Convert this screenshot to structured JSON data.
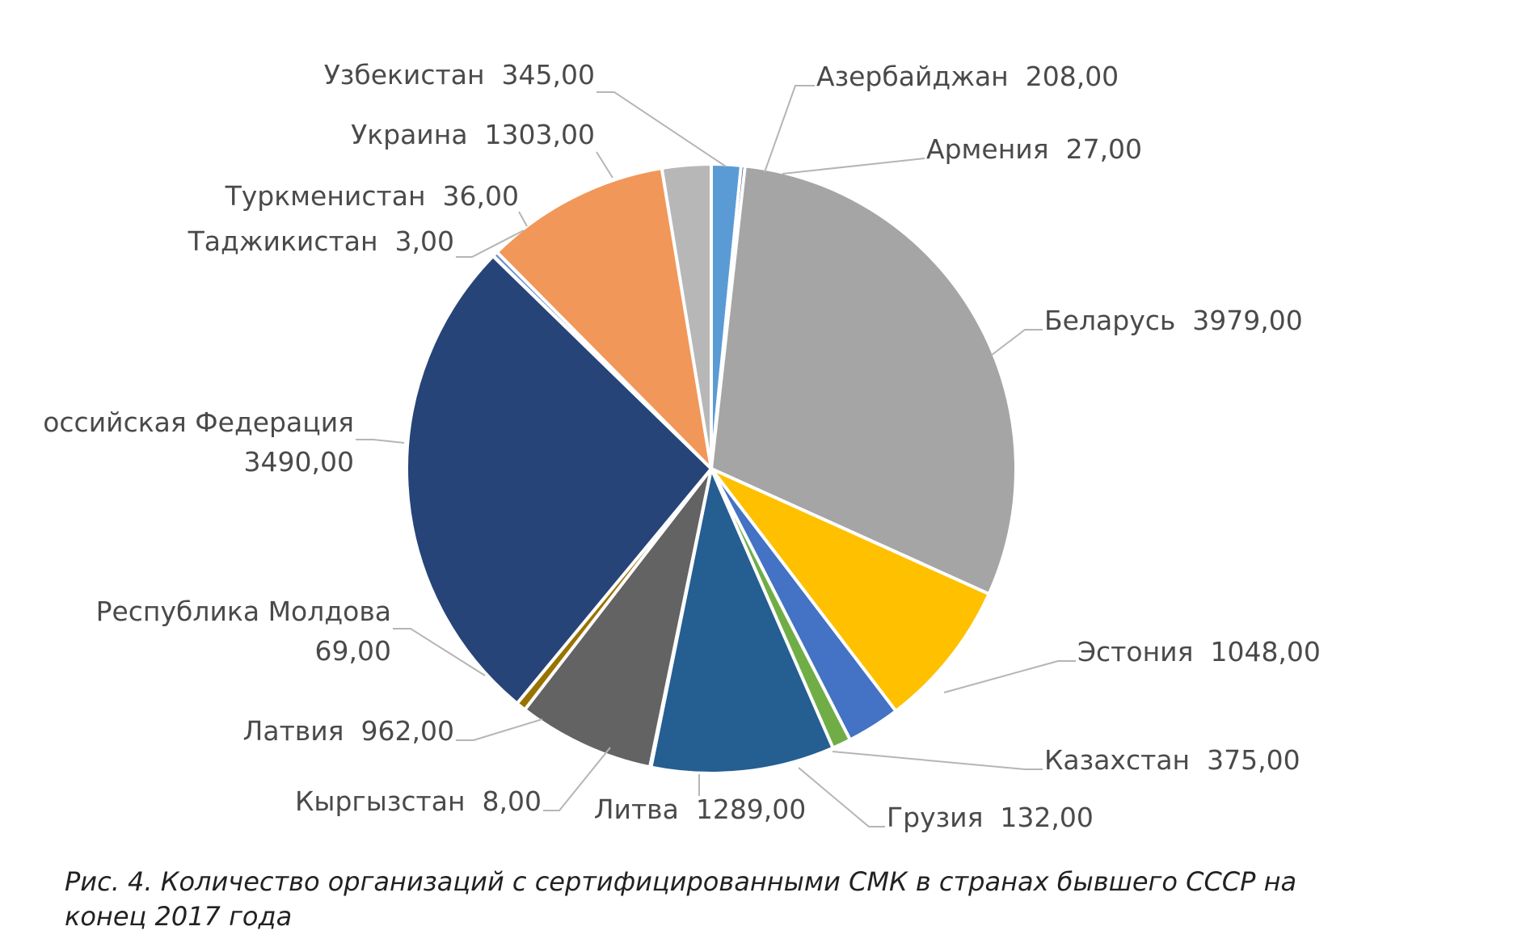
{
  "chart_data": {
    "type": "pie",
    "categories": [
      "Азербайджан",
      "Армения",
      "Беларусь",
      "Эстония",
      "Казахстан",
      "Грузия",
      "Литва",
      "Кыргызстан",
      "Латвия",
      "Республика Молдова",
      "Российская Федерация",
      "Таджикистан",
      "Туркменистан",
      "Украина",
      "Узбекистан"
    ],
    "values": [
      208,
      27,
      3979,
      1048,
      375,
      132,
      1289,
      8,
      962,
      69,
      3490,
      3,
      36,
      1303,
      345
    ],
    "data_labels": [
      [
        "Азербайджан  208,00"
      ],
      [
        "Армения  27,00"
      ],
      [
        "Беларусь  3979,00"
      ],
      [
        "Эстония  1048,00"
      ],
      [
        "Казахстан  375,00"
      ],
      [
        "Грузия  132,00"
      ],
      [
        "Литва  1289,00"
      ],
      [
        "Кыргызстан  8,00"
      ],
      [
        "Латвия  962,00"
      ],
      [
        "Республика Молдова",
        "69,00"
      ],
      [
        "оссийская Федерация",
        "3490,00"
      ],
      [
        "Таджикистан  3,00"
      ],
      [
        "Туркменистан  36,00"
      ],
      [
        "Украина  1303,00"
      ],
      [
        "Узбекистан  345,00"
      ]
    ],
    "colors": [
      "#5b9bd5",
      "#264478",
      "#a5a5a5",
      "#ffc000",
      "#4472c4",
      "#70ad47",
      "#255e91",
      "#9e480e",
      "#636363",
      "#997300",
      "#264478",
      "#43682b",
      "#698ed0",
      "#f1975a",
      "#b7b7b7"
    ],
    "start_angle_deg": 0,
    "direction": "clockwise",
    "legend": "none"
  },
  "caption": {
    "line1": "Рис. 4. Количество организаций с сертифицированными СМК в странах бывшего СССР на",
    "line2": "конец 2017 года"
  }
}
